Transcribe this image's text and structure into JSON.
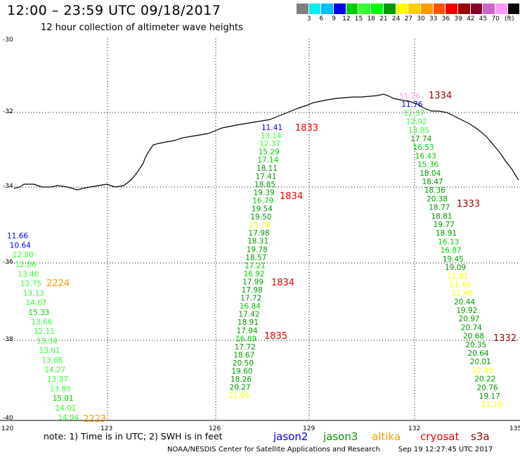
{
  "header": {
    "title": "12:00 – 23:59 UTC 09/18/2017",
    "subtitle": "12 hour collection of altimeter wave heights"
  },
  "colorbar": {
    "colors": [
      "#808080",
      "#00eeee",
      "#00bfff",
      "#0000ee",
      "#00cd00",
      "#33ff33",
      "#00ff00",
      "#009900",
      "#ffff00",
      "#ffcc00",
      "#ff9900",
      "#ff5500",
      "#ee0000",
      "#990000",
      "#880022",
      "#cc66cc",
      "#ff99ff",
      "#000000"
    ],
    "labels": [
      "3",
      "6",
      "9",
      "12",
      "15",
      "18",
      "21",
      "24",
      "27",
      "30",
      "33",
      "36",
      "39",
      "42",
      "45",
      "70"
    ],
    "unit": "(ft)"
  },
  "axes": {
    "lat_labels": [
      "-30",
      "-32",
      "-34",
      "-36",
      "-38",
      "-40"
    ],
    "lon_labels": [
      "120",
      "123",
      "126",
      "129",
      "132",
      "135"
    ]
  },
  "tracks": [
    {
      "name": "track-center",
      "time": "1833",
      "time2": "1834",
      "time3": "1834",
      "time4": "1835",
      "values": [
        {
          "v": "11.41",
          "c": "#0000ee"
        },
        {
          "v": "13.14",
          "c": "#33ff33"
        },
        {
          "v": "12.37",
          "c": "#33ff33"
        },
        {
          "v": "15.29",
          "c": "#00cd00"
        },
        {
          "v": "17.14",
          "c": "#00cd00"
        },
        {
          "v": "18.11",
          "c": "#009900"
        },
        {
          "v": "17.41",
          "c": "#009900"
        },
        {
          "v": "18.85",
          "c": "#009900"
        },
        {
          "v": "19.39",
          "c": "#009900"
        },
        {
          "v": "16.79",
          "c": "#00cd00"
        },
        {
          "v": "19.54",
          "c": "#009900"
        },
        {
          "v": "19.50",
          "c": "#009900"
        },
        {
          "v": "21.78",
          "c": "#ffff00"
        },
        {
          "v": "17.98",
          "c": "#009900"
        },
        {
          "v": "18.31",
          "c": "#009900"
        },
        {
          "v": "19.78",
          "c": "#009900"
        },
        {
          "v": "18.57",
          "c": "#009900"
        },
        {
          "v": "17.21",
          "c": "#00cd00"
        },
        {
          "v": "16.92",
          "c": "#00cd00"
        },
        {
          "v": "17.99",
          "c": "#009900"
        },
        {
          "v": "17.98",
          "c": "#009900"
        },
        {
          "v": "17.72",
          "c": "#009900"
        },
        {
          "v": "16.84",
          "c": "#00cd00"
        },
        {
          "v": "17.42",
          "c": "#009900"
        },
        {
          "v": "18.91",
          "c": "#009900"
        },
        {
          "v": "17.94",
          "c": "#009900"
        },
        {
          "v": "16.89",
          "c": "#00cd00"
        },
        {
          "v": "17.72",
          "c": "#009900"
        },
        {
          "v": "18.67",
          "c": "#009900"
        },
        {
          "v": "20.50",
          "c": "#009900"
        },
        {
          "v": "19.60",
          "c": "#009900"
        },
        {
          "v": "18.26",
          "c": "#009900"
        },
        {
          "v": "20.27",
          "c": "#009900"
        },
        {
          "v": "21.04",
          "c": "#ffff00"
        }
      ]
    },
    {
      "name": "track-east",
      "time": "1334",
      "time2": "1333",
      "time3": "1332",
      "values": [
        {
          "v": "51.26",
          "c": "#ff99ff"
        },
        {
          "v": "11.76",
          "c": "#0000ee"
        },
        {
          "v": "12.57",
          "c": "#33ff33"
        },
        {
          "v": "12.92",
          "c": "#33ff33"
        },
        {
          "v": "13.85",
          "c": "#33ff33"
        },
        {
          "v": "17.74",
          "c": "#009900"
        },
        {
          "v": "16.53",
          "c": "#00cd00"
        },
        {
          "v": "16.43",
          "c": "#00cd00"
        },
        {
          "v": "15.36",
          "c": "#00cd00"
        },
        {
          "v": "18.04",
          "c": "#009900"
        },
        {
          "v": "18.47",
          "c": "#009900"
        },
        {
          "v": "18.36",
          "c": "#009900"
        },
        {
          "v": "20.38",
          "c": "#009900"
        },
        {
          "v": "18.77",
          "c": "#009900"
        },
        {
          "v": "18.81",
          "c": "#009900"
        },
        {
          "v": "19.77",
          "c": "#009900"
        },
        {
          "v": "18.91",
          "c": "#009900"
        },
        {
          "v": "16.13",
          "c": "#00cd00"
        },
        {
          "v": "16.87",
          "c": "#00cd00"
        },
        {
          "v": "19.45",
          "c": "#009900"
        },
        {
          "v": "19.09",
          "c": "#009900"
        },
        {
          "v": "21.81",
          "c": "#ffff00"
        },
        {
          "v": "21.48",
          "c": "#ffff00"
        },
        {
          "v": "21.40",
          "c": "#ffff00"
        },
        {
          "v": "20.44",
          "c": "#009900"
        },
        {
          "v": "19.92",
          "c": "#009900"
        },
        {
          "v": "20.97",
          "c": "#009900"
        },
        {
          "v": "20.74",
          "c": "#009900"
        },
        {
          "v": "20.68",
          "c": "#009900"
        },
        {
          "v": "20.35",
          "c": "#009900"
        },
        {
          "v": "20.64",
          "c": "#009900"
        },
        {
          "v": "20.01",
          "c": "#009900"
        },
        {
          "v": "22.49",
          "c": "#ffff00"
        },
        {
          "v": "20.22",
          "c": "#009900"
        },
        {
          "v": "20.76",
          "c": "#009900"
        },
        {
          "v": "19.17",
          "c": "#009900"
        },
        {
          "v": "21.10",
          "c": "#ffff00"
        }
      ]
    },
    {
      "name": "track-west",
      "time": "2224",
      "time2": "2223",
      "values": [
        {
          "v": "11.66",
          "c": "#0000ee"
        },
        {
          "v": "10.64",
          "c": "#0000ee"
        },
        {
          "v": "12.80",
          "c": "#33ff33"
        },
        {
          "v": "12.86",
          "c": "#33ff33"
        },
        {
          "v": "13.48",
          "c": "#33ff33"
        },
        {
          "v": "13.75",
          "c": "#33ff33"
        },
        {
          "v": "13.13",
          "c": "#33ff33"
        },
        {
          "v": "14.67",
          "c": "#33ff33"
        },
        {
          "v": "15.33",
          "c": "#00cd00"
        },
        {
          "v": "13.66",
          "c": "#33ff33"
        },
        {
          "v": "12.11",
          "c": "#33ff33"
        },
        {
          "v": "13.34",
          "c": "#33ff33"
        },
        {
          "v": "13.61",
          "c": "#33ff33"
        },
        {
          "v": "13.68",
          "c": "#33ff33"
        },
        {
          "v": "14.27",
          "c": "#33ff33"
        },
        {
          "v": "13.97",
          "c": "#33ff33"
        },
        {
          "v": "13.83",
          "c": "#33ff33"
        },
        {
          "v": "15.01",
          "c": "#00cd00"
        },
        {
          "v": "14.01",
          "c": "#33ff33"
        },
        {
          "v": "14.94",
          "c": "#33ff33"
        }
      ]
    }
  ],
  "legend": {
    "note": "note:  1) Time is in UTC; 2) SWH is in feet",
    "sats": [
      {
        "name": "jason2",
        "color": "#0000ee"
      },
      {
        "name": "jason3",
        "color": "#009900"
      },
      {
        "name": "altika",
        "color": "#ff9900"
      },
      {
        "name": "cryosat",
        "color": "#ee0000"
      },
      {
        "name": "s3a",
        "color": "#990000"
      }
    ]
  },
  "footer": {
    "credit": "NOAA/NESDIS Center for Satellite Applications and Research",
    "timestamp": "Sep 19 12:27:45 UTC 2017"
  },
  "time_colors": {
    "jason3": "#009900",
    "altika": "#ff9900",
    "cryosat": "#ee0000",
    "s3a": "#990000"
  }
}
